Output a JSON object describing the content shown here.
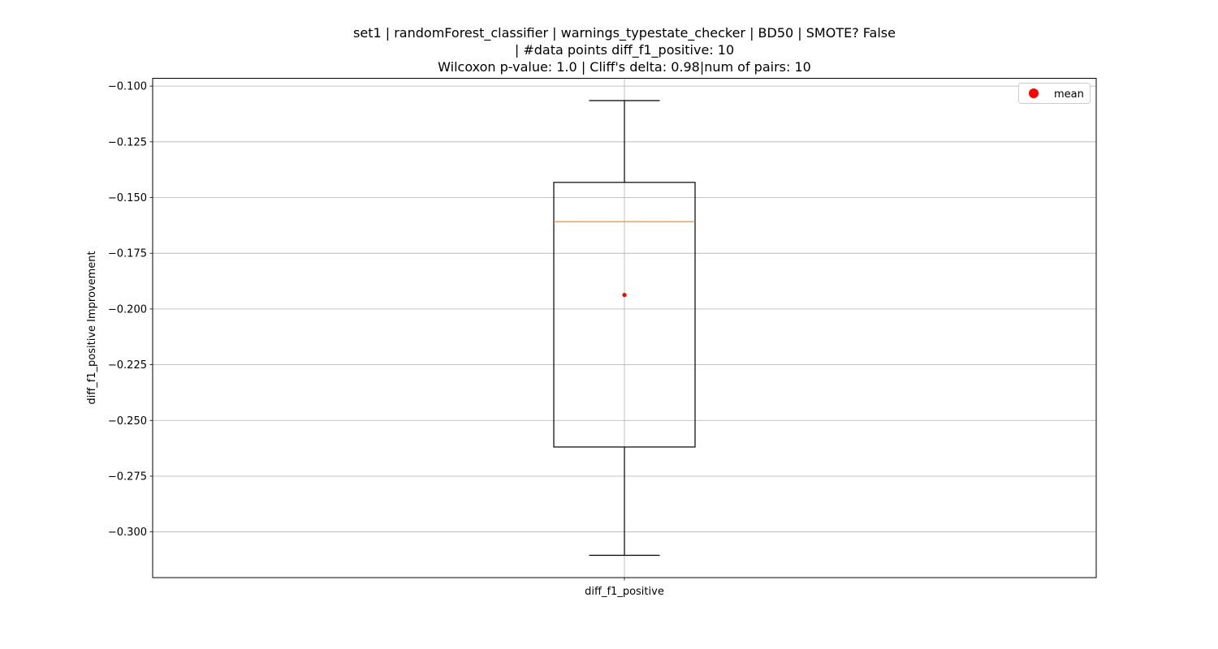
{
  "chart_data": {
    "type": "box",
    "title_lines": [
      "set1 | randomForest_classifier | warnings_typestate_checker | BD50 | SMOTE? False",
      "| #data points diff_f1_positive: 10",
      "Wilcoxon p-value: 1.0 | Cliff's delta: 0.98|num of pairs: 10"
    ],
    "xlabel": "",
    "ylabel": "diff_f1_positive Improvement",
    "categories": [
      "diff_f1_positive"
    ],
    "ylim": [
      -0.3205,
      -0.0965
    ],
    "y_ticks": [
      -0.1,
      -0.125,
      -0.15,
      -0.175,
      -0.2,
      -0.225,
      -0.25,
      -0.275,
      -0.3
    ],
    "y_tick_labels": [
      "−0.100",
      "−0.125",
      "−0.150",
      "−0.175",
      "−0.200",
      "−0.225",
      "−0.250",
      "−0.275",
      "−0.300"
    ],
    "grid": true,
    "box": {
      "whisker_high": -0.1065,
      "q3": -0.1432,
      "median": -0.1608,
      "q1": -0.2619,
      "whisker_low": -0.3105,
      "mean": -0.1937
    },
    "legend": {
      "entries": [
        "mean"
      ],
      "placement": "top-right"
    },
    "colors": {
      "box": "#000000",
      "median": "#ff7f0e",
      "mean": "#ff0000",
      "grid": "#b0b0b0"
    }
  }
}
